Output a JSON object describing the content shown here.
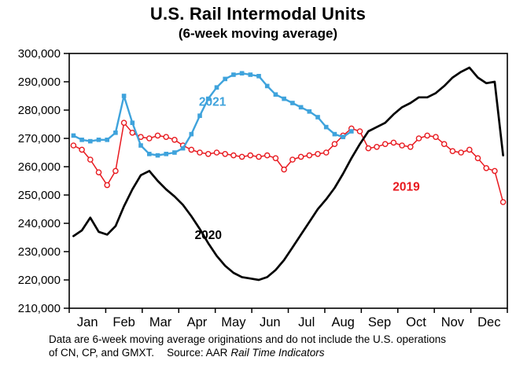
{
  "header": {
    "title": "U.S. Rail Intermodal Units",
    "subtitle": "(6-week moving average)"
  },
  "footer": {
    "line1": "Data are 6-week moving average originations and do not include the U.S. operations",
    "line2": "of CN, CP, and GMXT.",
    "source_prefix": "Source: AAR",
    "source_italic": "Rail Time Indicators"
  },
  "chart_data": {
    "type": "line",
    "title": "U.S. Rail Intermodal Units",
    "subtitle": "(6-week moving average)",
    "x_unit": "weeks",
    "weeks_per_year": 52,
    "months": [
      "Jan",
      "Feb",
      "Mar",
      "Apr",
      "May",
      "Jun",
      "Jul",
      "Aug",
      "Sep",
      "Oct",
      "Nov",
      "Dec"
    ],
    "ylim": [
      210000,
      300000
    ],
    "yticks": [
      210000,
      220000,
      230000,
      240000,
      250000,
      260000,
      270000,
      280000,
      290000,
      300000
    ],
    "ytick_labels": [
      "210,000",
      "220,000",
      "230,000",
      "240,000",
      "250,000",
      "260,000",
      "270,000",
      "280,000",
      "290,000",
      "300,000"
    ],
    "grid": false,
    "legend_position": "inline-annotations",
    "series": [
      {
        "name": "2019",
        "color": "#e8191f",
        "marker": "circle-open",
        "values": [
          267500,
          266000,
          262500,
          258000,
          253500,
          258500,
          275500,
          272000,
          270500,
          270000,
          271000,
          270500,
          269500,
          267500,
          266000,
          265000,
          264500,
          265000,
          264500,
          264000,
          263500,
          264000,
          263500,
          264000,
          263000,
          259000,
          262500,
          263500,
          264000,
          264500,
          265000,
          268000,
          271000,
          273500,
          272500,
          266500,
          267000,
          268000,
          268500,
          267500,
          267000,
          270000,
          271000,
          270500,
          268000,
          265500,
          265000,
          266000,
          263000,
          259500,
          258500,
          247500
        ]
      },
      {
        "name": "2021",
        "color": "#3fa3dc",
        "marker": "square",
        "values": [
          271000,
          269500,
          269000,
          269500,
          269500,
          272000,
          285000,
          275500,
          267500,
          264500,
          264000,
          264500,
          265000,
          266500,
          271500,
          278000,
          284000,
          288000,
          291000,
          292500,
          293000,
          292500,
          292000,
          288500,
          285500,
          284000,
          282500,
          281000,
          279500,
          277500,
          274000,
          271500,
          270500,
          272500
        ]
      },
      {
        "name": "2020",
        "color": "#000000",
        "marker": "none",
        "values": [
          235500,
          237500,
          242000,
          237000,
          236000,
          239000,
          246000,
          252000,
          257000,
          258500,
          255000,
          252000,
          249500,
          246500,
          242500,
          238000,
          233000,
          228500,
          225000,
          222500,
          221000,
          220500,
          220000,
          221000,
          223500,
          227000,
          231500,
          236000,
          240500,
          245000,
          248500,
          252500,
          257500,
          263000,
          268000,
          272500,
          274000,
          275500,
          278500,
          281000,
          282500,
          284500,
          284500,
          286000,
          288500,
          291500,
          293500,
          295000,
          291500,
          289500,
          290000,
          264000
        ]
      }
    ],
    "annotations": [
      {
        "text": "2021",
        "color": "#3fa3dc",
        "week": 16.5,
        "value": 281500
      },
      {
        "text": "2019",
        "color": "#e8191f",
        "week": 39.5,
        "value": 251500
      },
      {
        "text": "2020",
        "color": "#000000",
        "week": 16.0,
        "value": 234500
      }
    ]
  }
}
